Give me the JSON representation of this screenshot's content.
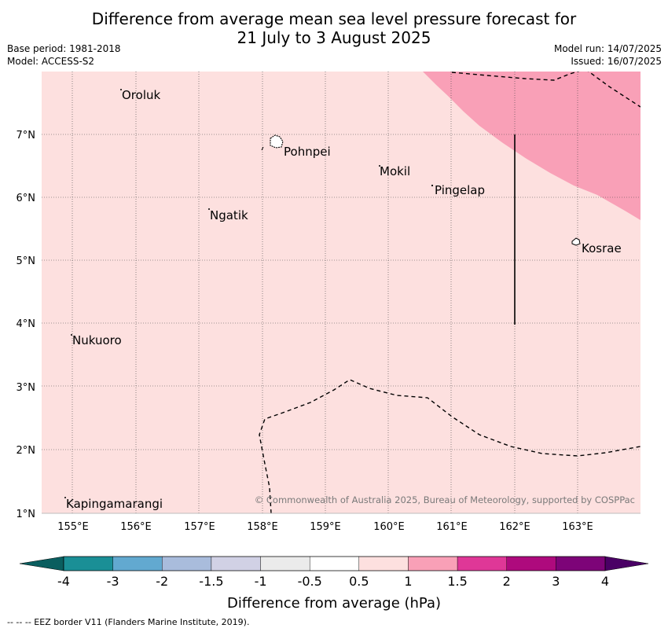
{
  "title": {
    "line1": "Difference from average mean sea level pressure forecast for",
    "line2": "21 July to 3 August 2025"
  },
  "meta_left": {
    "base_period": "Base period: 1981-2018",
    "model": "Model: ACCESS-S2"
  },
  "meta_right": {
    "model_run": "Model run: 14/07/2025",
    "issued": "Issued: 16/07/2025"
  },
  "map": {
    "lon_labels": [
      "155°E",
      "156°E",
      "157°E",
      "158°E",
      "159°E",
      "160°E",
      "161°E",
      "162°E",
      "163°E"
    ],
    "lat_labels": [
      "7°N",
      "6°N",
      "5°N",
      "4°N",
      "3°N",
      "2°N",
      "1°N"
    ],
    "base_fill_color": "#fde0df",
    "high_fill_color": "#f9a0b7",
    "places": [
      {
        "name": "Oroluk"
      },
      {
        "name": "Pohnpei"
      },
      {
        "name": "Mokil"
      },
      {
        "name": "Pingelap"
      },
      {
        "name": "Ngatik"
      },
      {
        "name": "Kosrae"
      },
      {
        "name": "Nukuoro"
      },
      {
        "name": "Kapingamarangi"
      }
    ],
    "copyright": "© Commonwealth of Australia 2025, Bureau of Meteorology, supported by COSPPac"
  },
  "colorbar": {
    "ticks": [
      "-4",
      "-3",
      "-2",
      "-1.5",
      "-1",
      "-0.5",
      "0.5",
      "1",
      "1.5",
      "2",
      "3",
      "4"
    ],
    "colors": [
      "#1a8f96",
      "#62a9d0",
      "#a9bcdc",
      "#d1d1e5",
      "#ebebeb",
      "#ffffff",
      "#fde0df",
      "#f9a0b7",
      "#df3797",
      "#ae0a7d",
      "#7d0478"
    ],
    "low_extend_color": "#0a5e5f",
    "high_extend_color": "#4a0065",
    "label": "Difference from average (hPa)"
  },
  "footnote": "--  --  -- EEZ border V11 (Flanders Marine Institute, 2019)."
}
